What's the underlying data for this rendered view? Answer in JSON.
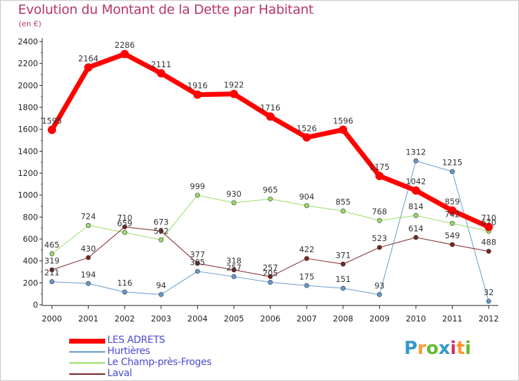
{
  "header": {
    "title": "Evolution du Montant de la Dette par Habitant",
    "subtitle": "(en €)"
  },
  "chart_data": {
    "type": "line",
    "title": "Evolution du Montant de la Dette par Habitant",
    "subtitle": "(en €)",
    "xlabel": "",
    "ylabel": "",
    "categories": [
      "2000",
      "2001",
      "2002",
      "2003",
      "2004",
      "2005",
      "2006",
      "2007",
      "2008",
      "2009",
      "2010",
      "2011",
      "2012"
    ],
    "ylim": [
      0,
      2400
    ],
    "yticks": [
      0,
      200,
      400,
      600,
      800,
      1000,
      1200,
      1400,
      1600,
      1800,
      2000,
      2200,
      2400
    ],
    "grid": false,
    "legend_position": "bottom-left",
    "series": [
      {
        "name": "LES ADRETS",
        "color": "#ff0000",
        "width": 7,
        "values": [
          1595,
          2164,
          2286,
          2111,
          1916,
          1922,
          1716,
          1526,
          1596,
          1175,
          1042,
          859,
          710
        ]
      },
      {
        "name": "Hurtières",
        "color": "#6699cc",
        "width": 1,
        "values": [
          211,
          194,
          116,
          94,
          305,
          257,
          205,
          175,
          151,
          93,
          1312,
          1215,
          32
        ]
      },
      {
        "name": "Le Champ-près-Froges",
        "color": "#99dd66",
        "width": 1,
        "values": [
          465,
          724,
          659,
          592,
          999,
          930,
          965,
          904,
          855,
          768,
          814,
          742,
          670
        ]
      },
      {
        "name": "Laval",
        "color": "#7a2424",
        "width": 1,
        "values": [
          319,
          430,
          710,
          673,
          377,
          318,
          257,
          422,
          371,
          523,
          614,
          549,
          488
        ]
      }
    ]
  },
  "logo": {
    "letters": [
      {
        "ch": "P",
        "color": "#3399cc"
      },
      {
        "ch": "r",
        "color": "#ff9933"
      },
      {
        "ch": "o",
        "color": "#66bb33"
      },
      {
        "ch": "x",
        "color": "#3399cc"
      },
      {
        "ch": "i",
        "color": "#cc3366"
      },
      {
        "ch": "t",
        "color": "#ff9933"
      },
      {
        "ch": "i",
        "color": "#66bb33"
      }
    ]
  }
}
